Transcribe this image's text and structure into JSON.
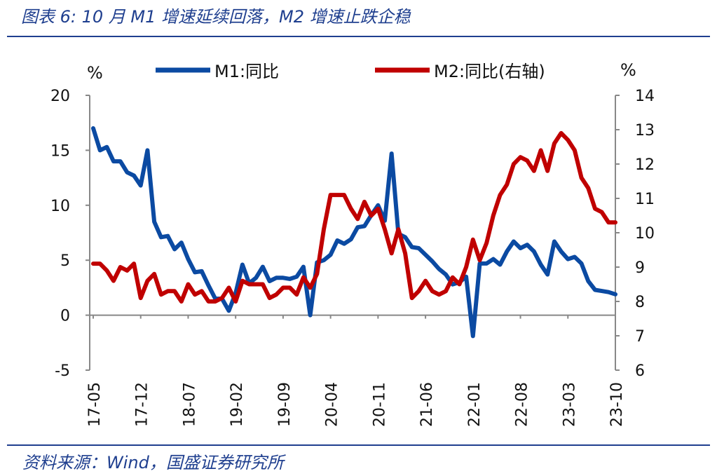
{
  "header": {
    "title": "图表 6:  10 月 M1 增速延续回落，M2 增速止跌企稳"
  },
  "footer": {
    "source": "资料来源：Wind，国盛证券研究所"
  },
  "chart_data": {
    "type": "line",
    "left_unit": "%",
    "right_unit": "%",
    "x_tick_labels": [
      "17-05",
      "17-12",
      "18-07",
      "19-02",
      "19-09",
      "20-04",
      "20-11",
      "21-06",
      "22-01",
      "22-08",
      "23-03",
      "23-10"
    ],
    "y_left": {
      "ticks": [
        20,
        15,
        10,
        5,
        0,
        -5
      ],
      "ylim": [
        -5,
        20
      ]
    },
    "y_right": {
      "ticks": [
        14,
        13,
        12,
        11,
        10,
        9,
        8,
        7,
        6
      ],
      "ylim": [
        6,
        14
      ]
    },
    "x": [
      "2017-05",
      "2017-06",
      "2017-07",
      "2017-08",
      "2017-09",
      "2017-10",
      "2017-11",
      "2017-12",
      "2018-01",
      "2018-02",
      "2018-03",
      "2018-04",
      "2018-05",
      "2018-06",
      "2018-07",
      "2018-08",
      "2018-09",
      "2018-10",
      "2018-11",
      "2018-12",
      "2019-01",
      "2019-02",
      "2019-03",
      "2019-04",
      "2019-05",
      "2019-06",
      "2019-07",
      "2019-08",
      "2019-09",
      "2019-10",
      "2019-11",
      "2019-12",
      "2020-01",
      "2020-02",
      "2020-03",
      "2020-04",
      "2020-05",
      "2020-06",
      "2020-07",
      "2020-08",
      "2020-09",
      "2020-10",
      "2020-11",
      "2020-12",
      "2021-01",
      "2021-02",
      "2021-03",
      "2021-04",
      "2021-05",
      "2021-06",
      "2021-07",
      "2021-08",
      "2021-09",
      "2021-10",
      "2021-11",
      "2021-12",
      "2022-01",
      "2022-02",
      "2022-03",
      "2022-04",
      "2022-05",
      "2022-06",
      "2022-07",
      "2022-08",
      "2022-09",
      "2022-10",
      "2022-11",
      "2022-12",
      "2023-01",
      "2023-02",
      "2023-03",
      "2023-04",
      "2023-05",
      "2023-06",
      "2023-07",
      "2023-08",
      "2023-09",
      "2023-10"
    ],
    "series": [
      {
        "name": "M1:同比",
        "axis": "left",
        "color": "#0b4aa2",
        "values": [
          17.0,
          15.0,
          15.3,
          14.0,
          14.0,
          13.0,
          12.7,
          11.8,
          15.0,
          8.5,
          7.1,
          7.2,
          6.0,
          6.6,
          5.1,
          3.9,
          4.0,
          2.7,
          1.5,
          1.5,
          0.4,
          2.0,
          4.6,
          2.9,
          3.4,
          4.4,
          3.1,
          3.4,
          3.4,
          3.3,
          3.5,
          4.4,
          0.0,
          4.8,
          5.0,
          5.5,
          6.8,
          6.5,
          6.9,
          8.0,
          8.1,
          9.1,
          10.0,
          8.6,
          14.7,
          7.4,
          7.1,
          6.2,
          6.1,
          5.5,
          4.9,
          4.2,
          3.7,
          2.8,
          3.0,
          3.5,
          -1.9,
          4.7,
          4.7,
          5.1,
          4.6,
          5.8,
          6.7,
          6.1,
          6.4,
          5.8,
          4.6,
          3.7,
          6.7,
          5.8,
          5.1,
          5.3,
          4.7,
          3.1,
          2.3,
          2.2,
          2.1,
          1.9
        ]
      },
      {
        "name": "M2:同比(右轴)",
        "axis": "right",
        "color": "#c00000",
        "values": [
          9.1,
          9.1,
          8.9,
          8.6,
          9.0,
          8.9,
          9.1,
          8.1,
          8.6,
          8.8,
          8.2,
          8.3,
          8.3,
          8.0,
          8.5,
          8.2,
          8.3,
          8.0,
          8.0,
          8.1,
          8.4,
          8.0,
          8.6,
          8.5,
          8.5,
          8.5,
          8.1,
          8.2,
          8.4,
          8.4,
          8.2,
          8.7,
          8.4,
          8.8,
          10.1,
          11.1,
          11.1,
          11.1,
          10.7,
          10.4,
          10.9,
          10.5,
          10.7,
          10.1,
          9.4,
          10.1,
          9.4,
          8.1,
          8.3,
          8.6,
          8.3,
          8.2,
          8.3,
          8.7,
          8.5,
          9.0,
          9.8,
          9.2,
          9.7,
          10.5,
          11.1,
          11.4,
          12.0,
          12.2,
          12.1,
          11.8,
          12.4,
          11.8,
          12.6,
          12.9,
          12.7,
          12.4,
          11.6,
          11.3,
          10.7,
          10.6,
          10.3,
          10.3
        ]
      }
    ]
  }
}
